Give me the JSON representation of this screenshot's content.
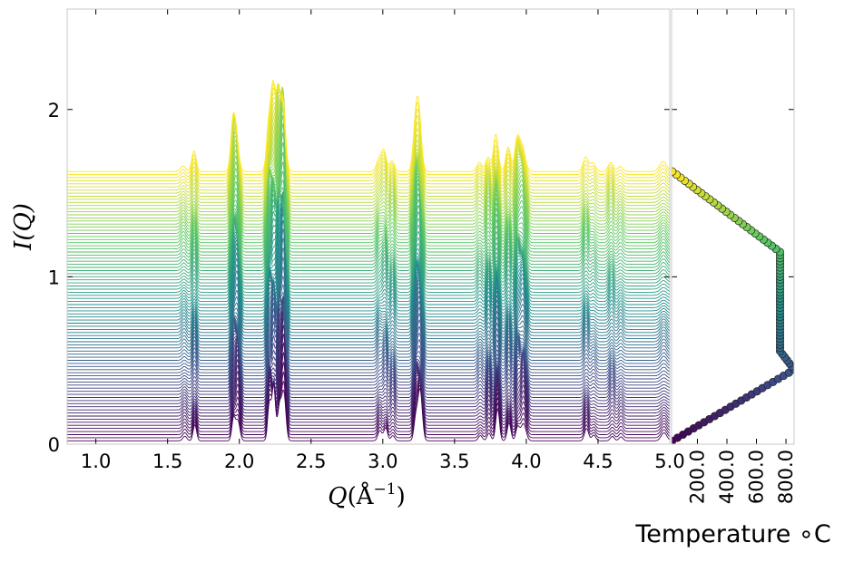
{
  "chart_data": [
    {
      "type": "line",
      "panel": "waterfall",
      "xlabel_var": "Q",
      "xlabel_unit": "Å",
      "xlabel_exp": "−1",
      "ylabel": "I(Q)",
      "xlim": [
        0.8,
        5.0
      ],
      "ylim": [
        0,
        2.6
      ],
      "x_ticks": [
        "1.0",
        "1.5",
        "2.0",
        "2.5",
        "3.0",
        "3.5",
        "4.0",
        "4.5",
        "5.0"
      ],
      "y_ticks": [
        "0",
        "1",
        "2"
      ],
      "n_series": 88,
      "series_offset": 0.0185,
      "peaks": [
        {
          "q": 1.62,
          "height": 0.05,
          "width": 0.014
        },
        {
          "q": 1.69,
          "height": 0.12,
          "width": 0.012
        },
        {
          "q": 1.96,
          "height": 0.28,
          "width": 0.012
        },
        {
          "q": 1.99,
          "height": 0.38,
          "width": 0.014
        },
        {
          "q": 2.21,
          "height": 0.34,
          "width": 0.012
        },
        {
          "q": 2.24,
          "height": 0.44,
          "width": 0.012
        },
        {
          "q": 2.28,
          "height": 0.55,
          "width": 0.013
        },
        {
          "q": 2.31,
          "height": 0.73,
          "width": 0.014
        },
        {
          "q": 2.98,
          "height": 0.08,
          "width": 0.014
        },
        {
          "q": 3.02,
          "height": 0.12,
          "width": 0.013
        },
        {
          "q": 3.07,
          "height": 0.1,
          "width": 0.013
        },
        {
          "q": 3.23,
          "height": 0.26,
          "width": 0.013
        },
        {
          "q": 3.26,
          "height": 0.38,
          "width": 0.015
        },
        {
          "q": 3.68,
          "height": 0.06,
          "width": 0.014
        },
        {
          "q": 3.74,
          "height": 0.15,
          "width": 0.013
        },
        {
          "q": 3.8,
          "height": 0.3,
          "width": 0.013
        },
        {
          "q": 3.88,
          "height": 0.14,
          "width": 0.013
        },
        {
          "q": 3.94,
          "height": 0.2,
          "width": 0.013
        },
        {
          "q": 3.98,
          "height": 0.28,
          "width": 0.018
        },
        {
          "q": 4.42,
          "height": 0.1,
          "width": 0.014
        },
        {
          "q": 4.47,
          "height": 0.05,
          "width": 0.014
        },
        {
          "q": 4.6,
          "height": 0.08,
          "width": 0.014
        },
        {
          "q": 4.66,
          "height": 0.05,
          "width": 0.014
        },
        {
          "q": 4.96,
          "height": 0.06,
          "width": 0.02
        }
      ],
      "colormap": [
        "#440154",
        "#3b528b",
        "#21918c",
        "#5ec962",
        "#fde725"
      ]
    },
    {
      "type": "scatter",
      "panel": "temperature",
      "xlabel": "Temperature ∘C",
      "x_ticks": [
        "200.0",
        "400.0",
        "600.0",
        "800.0"
      ],
      "x_tick_values": [
        200,
        400,
        600,
        800
      ],
      "xlim": [
        25,
        855
      ],
      "ylim": [
        0,
        2.6
      ],
      "profile": [
        {
          "series": 0,
          "temperature": 30
        },
        {
          "series": 23,
          "temperature": 855
        },
        {
          "series": 29,
          "temperature": 760
        },
        {
          "series": 61,
          "temperature": 760
        },
        {
          "series": 87,
          "temperature": 30
        }
      ],
      "marker_edge": "#222222"
    }
  ]
}
